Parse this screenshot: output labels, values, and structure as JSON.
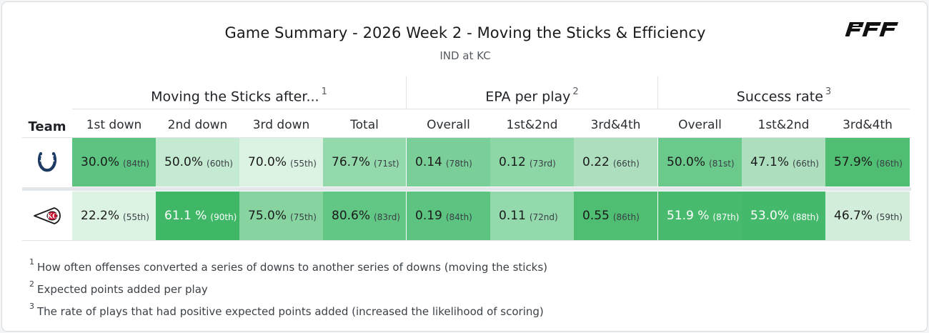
{
  "header": {
    "title": "Game Summary - 2026 Week 2 - Moving the Sticks & Efficiency",
    "subtitle": "IND at KC",
    "brand": "PFF",
    "brand_color": "#111111"
  },
  "table": {
    "team_header": "Team",
    "groups": [
      {
        "label": "Moving the Sticks after...",
        "footnote_ref": "1"
      },
      {
        "label": "EPA per play",
        "footnote_ref": "2"
      },
      {
        "label": "Success rate",
        "footnote_ref": "3"
      }
    ],
    "columns": [
      "1st down",
      "2nd down",
      "3rd down",
      "Total",
      "Overall",
      "1st&2nd",
      "3rd&4th",
      "Overall",
      "1st&2nd",
      "3rd&4th"
    ],
    "rows": [
      {
        "team": "IND",
        "logo_icon": "colts-horseshoe-icon",
        "cells": [
          {
            "value": "30.0%",
            "rank": "(84th)",
            "color": "#5cc480",
            "dark": false
          },
          {
            "value": "50.0%",
            "rank": "(60th)",
            "color": "#c5ead2",
            "dark": false
          },
          {
            "value": "70.0%",
            "rank": "(55th)",
            "color": "#dcf2e3",
            "dark": false
          },
          {
            "value": "76.7%",
            "rank": "(71st)",
            "color": "#94d9ac",
            "dark": false
          },
          {
            "value": "0.14",
            "rank": "(78th)",
            "color": "#79cf97",
            "dark": false
          },
          {
            "value": "0.12",
            "rank": "(73rd)",
            "color": "#8dd6a6",
            "dark": false
          },
          {
            "value": "0.22",
            "rank": "(66th)",
            "color": "#addfbf",
            "dark": false
          },
          {
            "value": "50.0%",
            "rank": "(81st)",
            "color": "#6ac98b",
            "dark": false
          },
          {
            "value": "47.1%",
            "rank": "(66th)",
            "color": "#addfbf",
            "dark": false
          },
          {
            "value": "57.9%",
            "rank": "(86th)",
            "color": "#4fbd72",
            "dark": false
          }
        ]
      },
      {
        "team": "KC",
        "logo_icon": "chiefs-arrowhead-icon",
        "cells": [
          {
            "value": "22.2%",
            "rank": "(55th)",
            "color": "#dcf2e3",
            "dark": false
          },
          {
            "value": "61.1 %",
            "rank": "(90th)",
            "color": "#3fb766",
            "dark": true
          },
          {
            "value": "75.0%",
            "rank": "(75th)",
            "color": "#87d4a1",
            "dark": false
          },
          {
            "value": "80.6%",
            "rank": "(83rd)",
            "color": "#62c685",
            "dark": false
          },
          {
            "value": "0.19",
            "rank": "(84th)",
            "color": "#5cc480",
            "dark": false
          },
          {
            "value": "0.11",
            "rank": "(72nd)",
            "color": "#94d9ac",
            "dark": false
          },
          {
            "value": "0.55",
            "rank": "(86th)",
            "color": "#4fbd72",
            "dark": false
          },
          {
            "value": "51.9 %",
            "rank": "(87th)",
            "color": "#48ba6e",
            "dark": true
          },
          {
            "value": "53.0%",
            "rank": "(88th)",
            "color": "#44b96b",
            "dark": true
          },
          {
            "value": "46.7%",
            "rank": "(59th)",
            "color": "#d2eedb",
            "dark": false
          }
        ]
      }
    ]
  },
  "footnotes": [
    {
      "num": "1",
      "text": "How often offenses converted a series of downs to another series of downs (moving the sticks)"
    },
    {
      "num": "2",
      "text": "Expected points added per play"
    },
    {
      "num": "3",
      "text": "The rate of plays that had positive expected points added (increased the likelihood of scoring)"
    }
  ]
}
